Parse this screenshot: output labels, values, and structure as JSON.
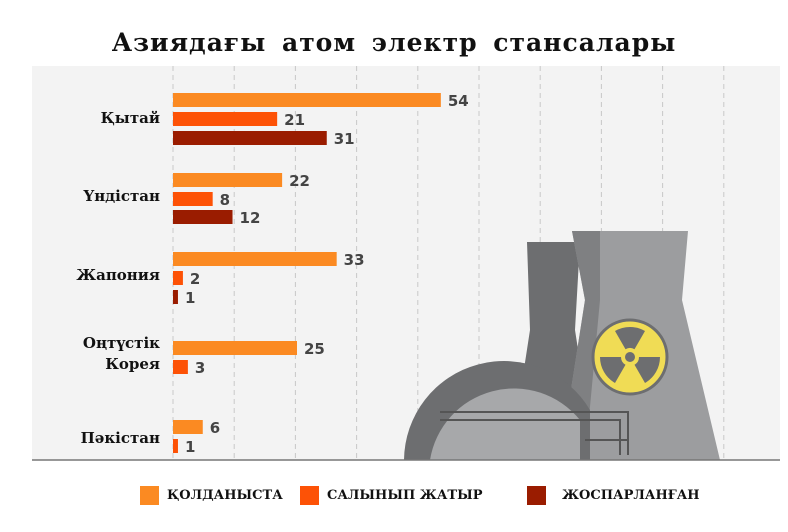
{
  "chart_data": {
    "type": "bar",
    "orientation": "horizontal",
    "title": "Азиядағы атом электр стансалары",
    "categories": [
      "Қытай",
      "Үндістан",
      "Жапония",
      "Оңтүстік Корея",
      "Пәкістан"
    ],
    "category_lines": [
      [
        "Қытай"
      ],
      [
        "Үндістан"
      ],
      [
        "Жапония"
      ],
      [
        "Оңтүстік",
        "Корея"
      ],
      [
        "Пәкістан"
      ]
    ],
    "series": [
      {
        "name": "ҚОЛДАНЫСТА",
        "color": "#fb8a22",
        "values": [
          54,
          22,
          33,
          25,
          6
        ]
      },
      {
        "name": "САЛЫНЫП ЖАТЫР",
        "color": "#fd5206",
        "values": [
          21,
          8,
          2,
          3,
          1
        ]
      },
      {
        "name": "ЖОСПАРЛАНҒАН",
        "color": "#9a1c00",
        "values": [
          31,
          12,
          1,
          null,
          null
        ]
      }
    ],
    "xlim": [
      0,
      122
    ],
    "grid": true,
    "legend": "bottom"
  }
}
